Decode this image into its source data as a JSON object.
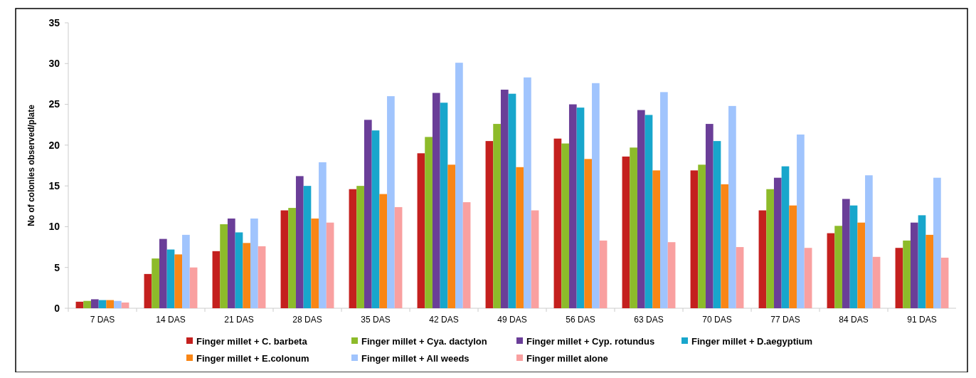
{
  "chart_data": {
    "type": "bar",
    "ylabel": "No of colonies observed/plate",
    "categories": [
      "7 DAS",
      "14 DAS",
      "21 DAS",
      "28 DAS",
      "35 DAS",
      "42 DAS",
      "49 DAS",
      "56 DAS",
      "63 DAS",
      "70 DAS",
      "77 DAS",
      "84 DAS",
      "91 DAS"
    ],
    "series": [
      {
        "name": "Finger millet + C. barbeta",
        "color": "#c4201e",
        "values": [
          0.8,
          4.2,
          7.0,
          12.0,
          14.6,
          19.0,
          20.5,
          20.8,
          18.6,
          16.9,
          12.0,
          9.2,
          7.4
        ]
      },
      {
        "name": "Finger millet + Cya. dactylon",
        "color": "#8dbb2a",
        "values": [
          0.9,
          6.1,
          10.3,
          12.3,
          15.0,
          21.0,
          22.6,
          20.2,
          19.7,
          17.6,
          14.6,
          10.1,
          8.3
        ]
      },
      {
        "name": "Finger millet + Cyp. rotundus",
        "color": "#6a3e98",
        "values": [
          1.1,
          8.5,
          11.0,
          16.2,
          23.1,
          26.4,
          26.8,
          25.0,
          24.3,
          22.6,
          16.0,
          13.4,
          10.5
        ]
      },
      {
        "name": "Finger millet + D.aegyptium",
        "color": "#18a6cc",
        "values": [
          1.0,
          7.2,
          9.3,
          15.0,
          21.8,
          25.2,
          26.3,
          24.6,
          23.7,
          20.5,
          17.4,
          12.6,
          11.4
        ]
      },
      {
        "name": "Finger millet + E.colonum",
        "color": "#f98615",
        "values": [
          1.0,
          6.6,
          8.0,
          11.0,
          14.0,
          17.6,
          17.3,
          18.3,
          16.9,
          15.2,
          12.6,
          10.5,
          9.0
        ]
      },
      {
        "name": "Finger millet + All weeds",
        "color": "#a0c4fd",
        "values": [
          0.9,
          9.0,
          11.0,
          17.9,
          26.0,
          30.1,
          28.3,
          27.6,
          26.5,
          24.8,
          21.3,
          16.3,
          16.0
        ]
      },
      {
        "name": "Finger millet alone",
        "color": "#f9a0a0",
        "values": [
          0.7,
          5.0,
          7.6,
          10.5,
          12.4,
          13.0,
          12.0,
          8.3,
          8.1,
          7.5,
          7.4,
          6.3,
          6.2
        ]
      }
    ],
    "ylim": [
      0,
      35
    ],
    "yticks": [
      0,
      5,
      10,
      15,
      20,
      25,
      30,
      35
    ],
    "legend": "bottom"
  }
}
